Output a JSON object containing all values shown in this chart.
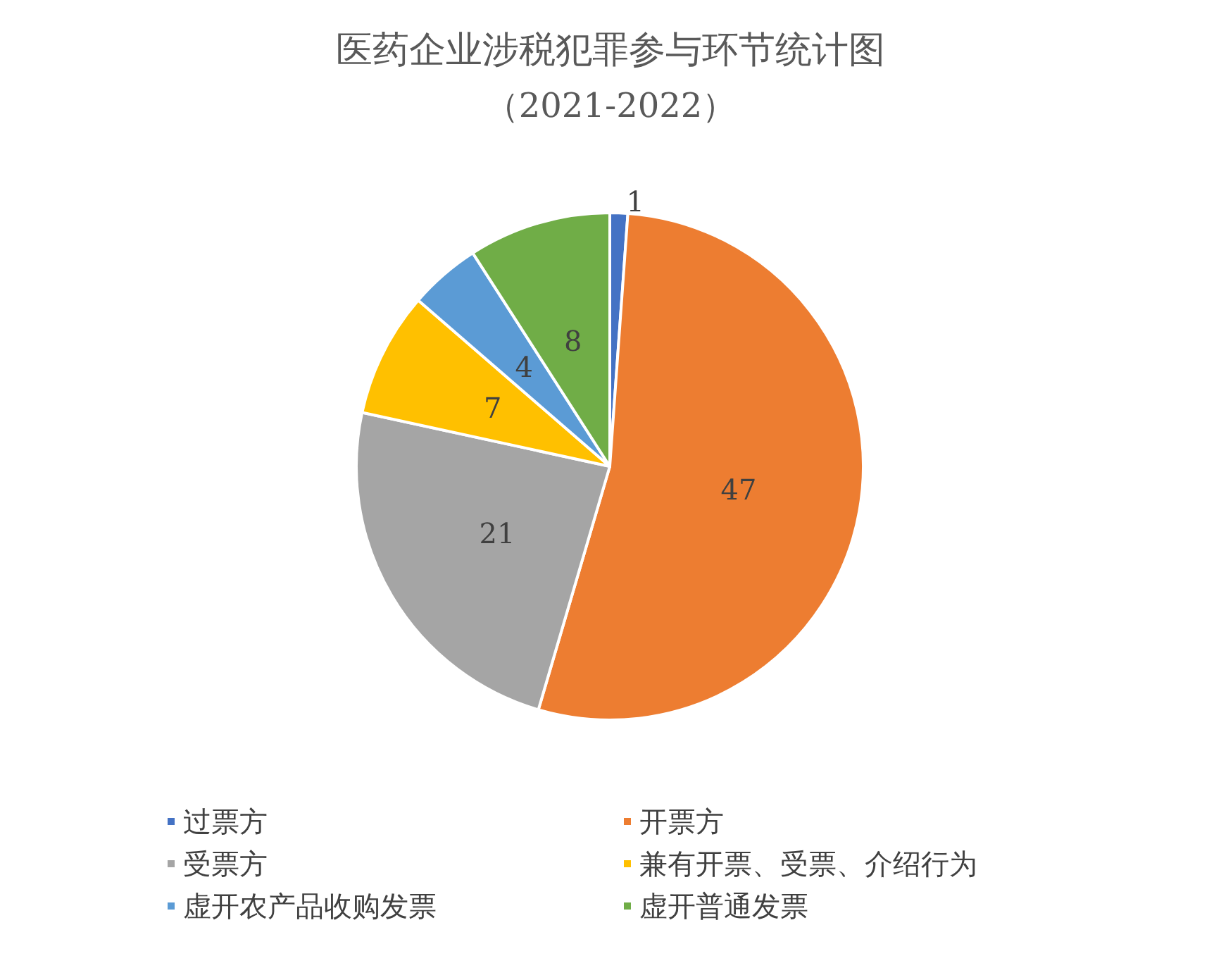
{
  "chart_data": {
    "type": "pie",
    "title": "医药企业涉税犯罪参与环节统计图",
    "subtitle": "（2021-2022）",
    "categories": [
      "过票方",
      "开票方",
      "受票方",
      "兼有开票、受票、介绍行为",
      "虚开农产品收购发票",
      "虚开普通发票"
    ],
    "values": [
      1,
      47,
      21,
      7,
      4,
      8
    ],
    "colors": [
      "#4472c4",
      "#ed7d31",
      "#a5a5a5",
      "#ffc000",
      "#5b9bd5",
      "#70ad47"
    ],
    "data_labels": true,
    "legend": "bottom"
  }
}
